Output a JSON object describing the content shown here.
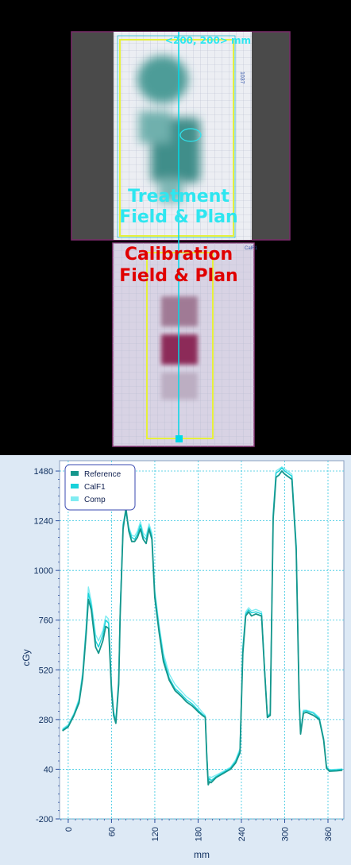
{
  "film": {
    "field_size_label": "<200, 200> mm",
    "treatment_line1": "Treatment",
    "treatment_line2": "Field & Plan",
    "calibration_line1": "Calibration",
    "calibration_line2": "Field & Plan",
    "side_mark": "1037",
    "calf_mark": "CalF1",
    "colors": {
      "treatment_text": "#2ee6f0",
      "calibration_text": "#e00000",
      "field_outline": "#e6f03c",
      "profile_line": "#00d8e8"
    }
  },
  "chart_data": {
    "type": "line",
    "ylabel": "cGy",
    "xlabel": "mm",
    "xlim": [
      -12,
      382
    ],
    "ylim": [
      -200,
      1530
    ],
    "yticks": [
      -200,
      40,
      280,
      520,
      760,
      1000,
      1240,
      1480
    ],
    "xticks": [
      0,
      60,
      120,
      180,
      240,
      300,
      360
    ],
    "grid": true,
    "legend": "top-left",
    "series": [
      {
        "name": "Reference",
        "color": "#15968c",
        "x": [
          -8,
          0,
          8,
          15,
          20,
          25,
          28,
          32,
          38,
          42,
          48,
          52,
          56,
          60,
          63,
          66,
          70,
          72,
          76,
          80,
          84,
          88,
          92,
          96,
          100,
          104,
          108,
          112,
          116,
          120,
          126,
          132,
          140,
          148,
          156,
          164,
          172,
          180,
          186,
          190,
          192,
          194,
          196,
          198,
          205,
          215,
          225,
          232,
          238,
          242,
          246,
          250,
          254,
          260,
          268,
          272,
          276,
          280,
          284,
          288,
          292,
          296,
          300,
          310,
          316,
          320,
          322,
          326,
          330,
          340,
          348,
          354,
          358,
          362,
          372,
          380
        ],
        "y": [
          225,
          245,
          300,
          360,
          480,
          700,
          860,
          810,
          630,
          600,
          660,
          730,
          720,
          420,
          300,
          262,
          450,
          780,
          1200,
          1300,
          1190,
          1140,
          1140,
          1160,
          1200,
          1150,
          1130,
          1200,
          1150,
          870,
          700,
          560,
          470,
          420,
          395,
          365,
          345,
          318,
          300,
          290,
          100,
          -35,
          -20,
          -25,
          0,
          20,
          40,
          70,
          120,
          600,
          780,
          800,
          780,
          790,
          780,
          520,
          290,
          300,
          1250,
          1450,
          1460,
          1480,
          1465,
          1440,
          1100,
          380,
          210,
          310,
          315,
          300,
          280,
          180,
          45,
          30,
          32,
          35
        ]
      },
      {
        "name": "CalF1",
        "color": "#19d2da",
        "x": [
          -8,
          0,
          8,
          15,
          20,
          25,
          28,
          32,
          38,
          42,
          48,
          52,
          56,
          60,
          63,
          66,
          70,
          72,
          76,
          80,
          84,
          88,
          92,
          96,
          100,
          104,
          108,
          112,
          116,
          120,
          126,
          132,
          140,
          148,
          156,
          164,
          172,
          180,
          186,
          190,
          192,
          194,
          196,
          198,
          205,
          215,
          225,
          232,
          238,
          242,
          246,
          250,
          254,
          260,
          268,
          272,
          276,
          280,
          284,
          288,
          292,
          296,
          300,
          310,
          316,
          320,
          322,
          326,
          330,
          340,
          348,
          354,
          358,
          362,
          372,
          380
        ],
        "y": [
          230,
          250,
          305,
          370,
          495,
          720,
          890,
          830,
          660,
          630,
          690,
          760,
          745,
          440,
          310,
          270,
          470,
          800,
          1220,
          1280,
          1200,
          1160,
          1150,
          1175,
          1220,
          1165,
          1150,
          1210,
          1165,
          890,
          720,
          580,
          480,
          430,
          405,
          375,
          355,
          325,
          305,
          295,
          110,
          -20,
          -5,
          -15,
          5,
          25,
          45,
          78,
          130,
          620,
          790,
          810,
          795,
          800,
          790,
          530,
          295,
          305,
          1270,
          1470,
          1480,
          1495,
          1480,
          1455,
          1120,
          390,
          215,
          320,
          322,
          310,
          285,
          185,
          50,
          35,
          37,
          40
        ]
      },
      {
        "name": "Comp",
        "color": "#80ecf2",
        "x": [
          -8,
          0,
          8,
          15,
          20,
          25,
          28,
          32,
          38,
          42,
          48,
          52,
          56,
          60,
          63,
          66,
          70,
          72,
          76,
          80,
          84,
          88,
          92,
          96,
          100,
          104,
          108,
          112,
          116,
          120,
          126,
          132,
          140,
          148,
          156,
          164,
          172,
          180,
          186,
          190,
          192,
          194,
          196,
          198,
          205,
          215,
          225,
          232,
          238,
          242,
          246,
          250,
          254,
          260,
          268,
          272,
          276,
          280,
          284,
          288,
          292,
          296,
          300,
          310,
          316,
          320,
          322,
          326,
          330,
          340,
          348,
          354,
          358,
          362,
          372,
          380
        ],
        "y": [
          235,
          255,
          310,
          380,
          510,
          740,
          920,
          850,
          690,
          660,
          710,
          780,
          765,
          455,
          320,
          278,
          485,
          815,
          1230,
          1290,
          1210,
          1170,
          1165,
          1190,
          1235,
          1180,
          1165,
          1225,
          1180,
          905,
          735,
          600,
          500,
          450,
          420,
          390,
          370,
          340,
          315,
          300,
          120,
          -10,
          5,
          0,
          12,
          30,
          50,
          85,
          140,
          635,
          800,
          820,
          805,
          812,
          800,
          540,
          300,
          310,
          1280,
          1480,
          1490,
          1500,
          1490,
          1465,
          1130,
          395,
          220,
          325,
          325,
          315,
          290,
          190,
          55,
          38,
          40,
          42
        ]
      }
    ]
  }
}
